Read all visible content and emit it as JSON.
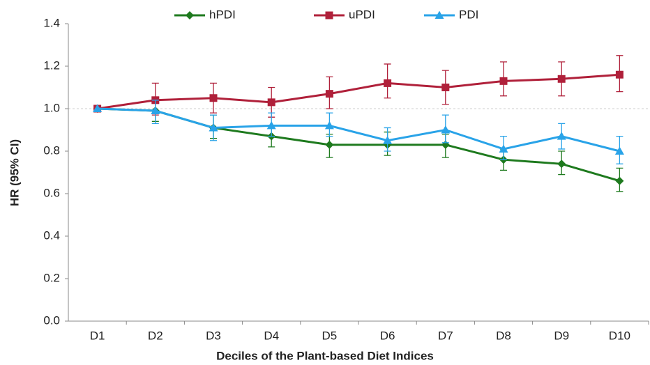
{
  "chart_data": {
    "type": "line",
    "xlabel": "Deciles of the Plant-based Diet Indices",
    "ylabel": "HR (95% CI)",
    "categories": [
      "D1",
      "D2",
      "D3",
      "D4",
      "D5",
      "D6",
      "D7",
      "D8",
      "D9",
      "D10"
    ],
    "series": [
      {
        "name": "hPDI",
        "color": "#1e7a1e",
        "marker": "diamond",
        "values": [
          1.0,
          0.99,
          0.91,
          0.87,
          0.83,
          0.83,
          0.83,
          0.76,
          0.74,
          0.66
        ],
        "ci_lower": [
          null,
          0.94,
          0.86,
          0.82,
          0.77,
          0.78,
          0.77,
          0.71,
          0.69,
          0.61
        ],
        "ci_upper": [
          null,
          1.04,
          0.97,
          0.92,
          0.88,
          0.89,
          0.88,
          0.81,
          0.8,
          0.72
        ]
      },
      {
        "name": "uPDI",
        "color": "#b0203a",
        "marker": "square",
        "values": [
          1.0,
          1.04,
          1.05,
          1.03,
          1.07,
          1.12,
          1.1,
          1.13,
          1.14,
          1.16
        ],
        "ci_lower": [
          null,
          0.97,
          0.98,
          0.96,
          1.0,
          1.05,
          1.02,
          1.06,
          1.06,
          1.08
        ],
        "ci_upper": [
          null,
          1.12,
          1.12,
          1.1,
          1.15,
          1.21,
          1.18,
          1.22,
          1.22,
          1.25
        ]
      },
      {
        "name": "PDI",
        "color": "#29a3e8",
        "marker": "triangle",
        "values": [
          1.0,
          0.99,
          0.91,
          0.92,
          0.92,
          0.85,
          0.9,
          0.81,
          0.87,
          0.8
        ],
        "ci_lower": [
          null,
          0.93,
          0.85,
          0.87,
          0.87,
          0.8,
          0.84,
          0.76,
          0.81,
          0.74
        ],
        "ci_upper": [
          null,
          1.04,
          0.97,
          0.98,
          0.98,
          0.91,
          0.97,
          0.87,
          0.93,
          0.87
        ]
      }
    ],
    "ylim": [
      0,
      1.4
    ],
    "yticks": [
      {
        "value": 0,
        "label": "0.0"
      },
      0.2,
      0.4,
      0.6,
      0.8,
      {
        "value": 1,
        "label": "1.0"
      },
      1.2,
      1.4
    ],
    "reference_line": 1,
    "legend": "top"
  }
}
